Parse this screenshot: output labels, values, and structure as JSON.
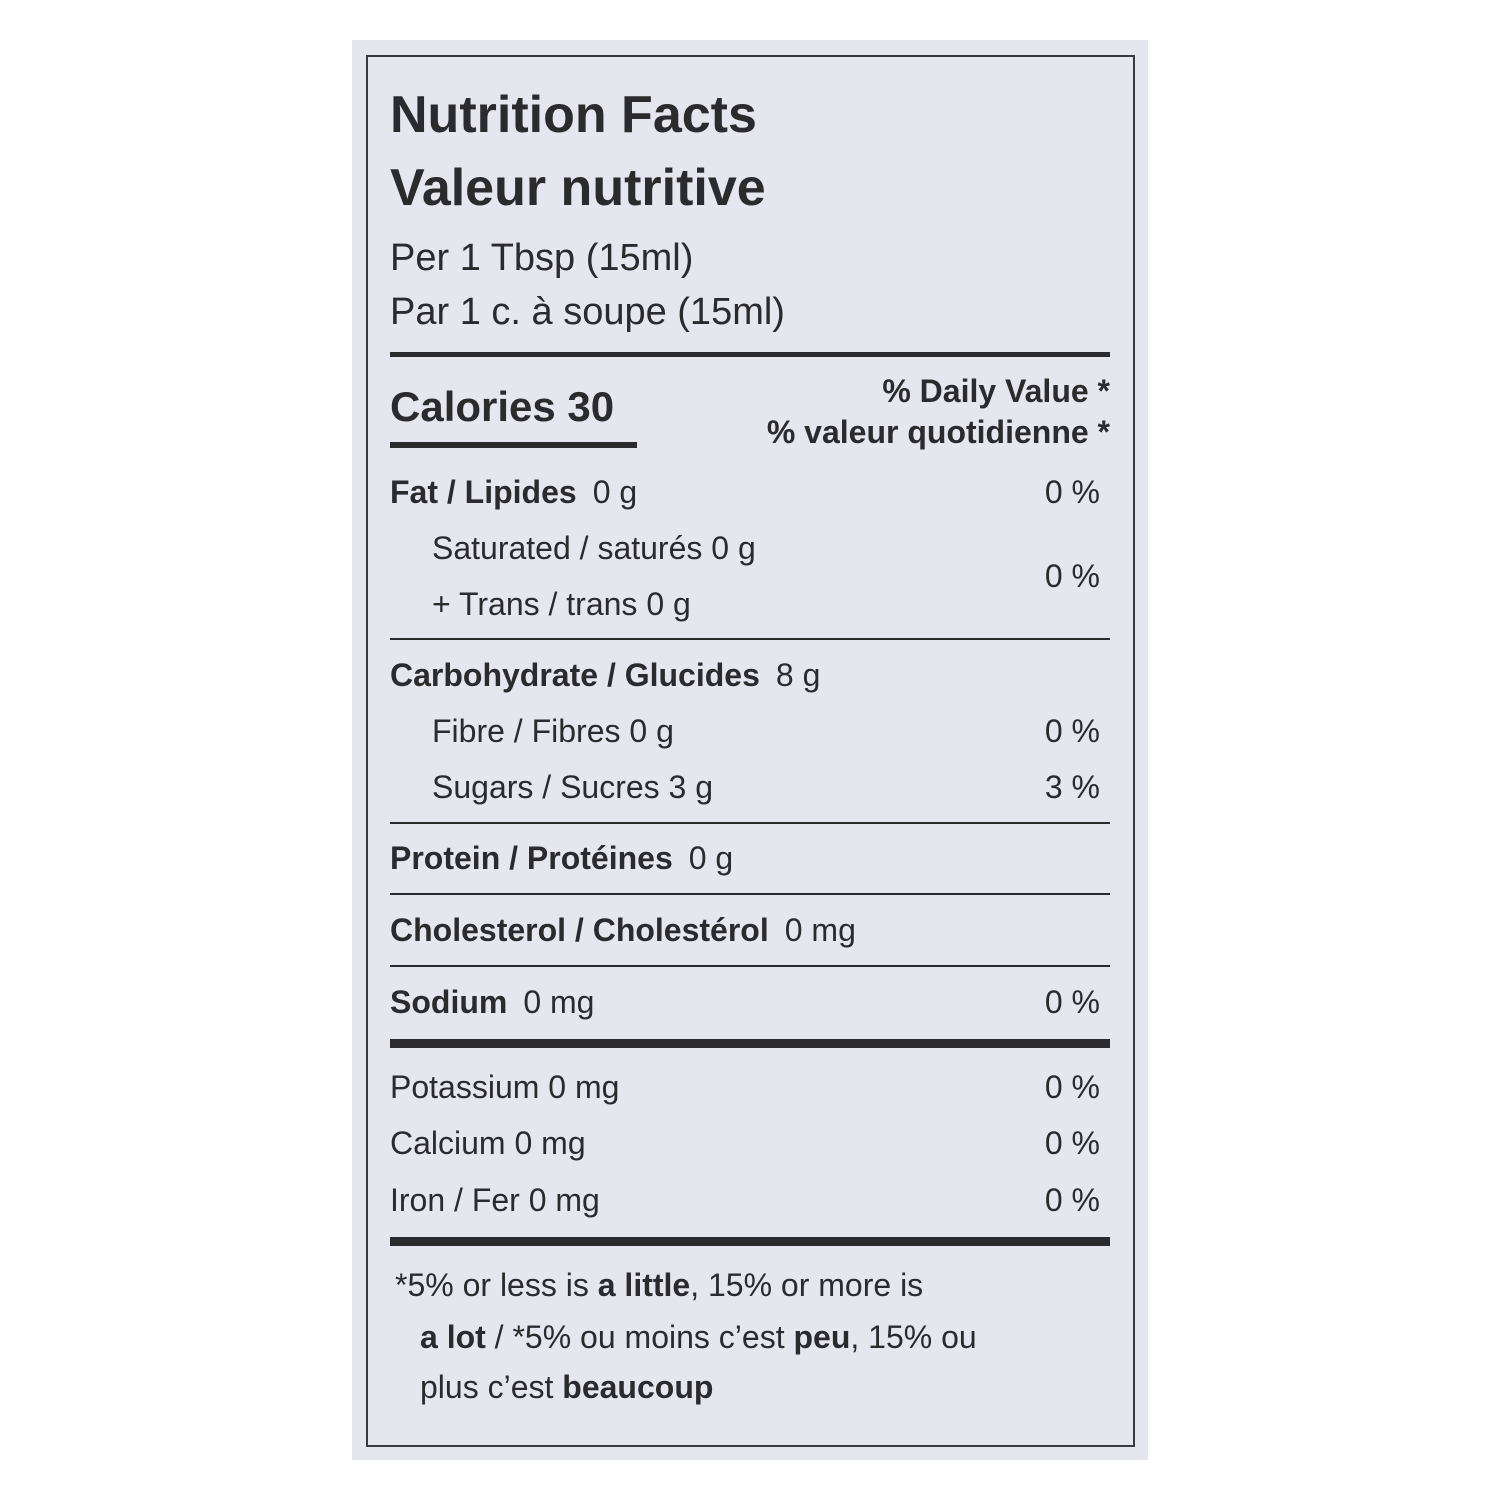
{
  "label": {
    "title": "Nutrition Facts",
    "title_fr": "Valeur nutritive",
    "serving": [
      "Per 1 Tbsp (15ml)",
      "Par 1 c. à soupe (15ml)"
    ],
    "calories": "Calories 30",
    "daily_value": [
      "% Daily Value *",
      "% valeur quotidienne *"
    ],
    "rows": [
      {
        "name": "Fat / Lipides",
        "amount": "0 g",
        "dv": "0 %"
      },
      {
        "lines": [
          "Saturated / saturés 0 g",
          "+ Trans / trans 0 g"
        ],
        "dv": "0 %"
      },
      {
        "name": "Carbohydrate / Glucides",
        "amount": "8 g"
      },
      {
        "text": "Fibre / Fibres 0 g",
        "dv": "0 %"
      },
      {
        "text": "Sugars / Sucres 3 g",
        "dv": "3 %"
      },
      {
        "name": "Protein / Protéines",
        "amount": "0 g"
      },
      {
        "name": "Cholesterol / Cholestérol",
        "amount": "0 mg"
      },
      {
        "name": "Sodium",
        "amount": "0 mg",
        "dv": "0 %"
      },
      {
        "text": "Potassium 0 mg",
        "dv": "0 %"
      },
      {
        "text": "Calcium 0 mg",
        "dv": "0 %"
      },
      {
        "text": "Iron / Fer 0 mg",
        "dv": "0 %"
      }
    ],
    "footnote": [
      [
        {
          "text": "*5% or less is "
        },
        {
          "text": "a little",
          "bold": true
        },
        {
          "text": ", 15% or more is"
        }
      ],
      [
        {
          "text": "a lot",
          "bold": true
        },
        {
          "text": " / *5% ou moins c’est "
        },
        {
          "text": "peu",
          "bold": true
        },
        {
          "text": ", 15% ou"
        }
      ],
      [
        {
          "text": "plus c’est "
        },
        {
          "text": "beaucoup",
          "bold": true
        }
      ]
    ]
  }
}
